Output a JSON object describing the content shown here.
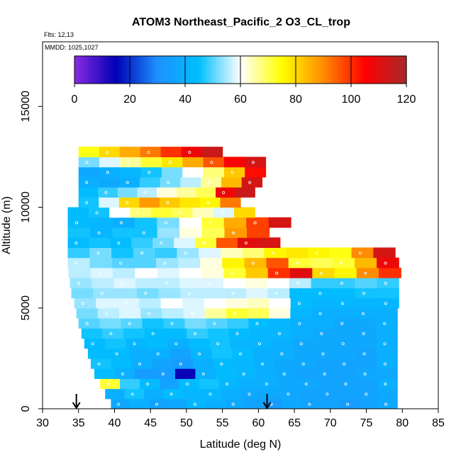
{
  "chart_data": {
    "type": "heatmap",
    "title": "ATOM3 Northeast_Pacific_2 O3_CL_trop",
    "flights_label": "Flts: 12,13",
    "dates_label": "MMDD: 1025,1027",
    "xlabel": "Latitude (deg N)",
    "ylabel": "Altitude (m)",
    "xlim": [
      30,
      85
    ],
    "ylim": [
      0,
      17500
    ],
    "xticks": [
      "30",
      "35",
      "40",
      "45",
      "50",
      "55",
      "60",
      "65",
      "70",
      "75",
      "80",
      "85"
    ],
    "yticks": [
      "0",
      "5000",
      "10000",
      "15000"
    ],
    "colorbar": {
      "min": 0,
      "max": 120,
      "ticks": [
        "0",
        "20",
        "40",
        "60",
        "80",
        "100",
        "120"
      ],
      "colors": [
        "#8a2be2",
        "#0000b4",
        "#1e90ff",
        "#00bfff",
        "#ffffff",
        "#ffff00",
        "#ff8c00",
        "#ff0000",
        "#a52a2a"
      ]
    },
    "arrows_latitude": [
      34.7,
      61.2
    ],
    "layer_height_m": 500,
    "layers": [
      {
        "alt": 0,
        "lat_start": 39.5,
        "lat_end": 79.3,
        "values": [
          38,
          40,
          36,
          38,
          42,
          40,
          38,
          36,
          34,
          38,
          36,
          36,
          34,
          36,
          38
        ]
      },
      {
        "alt": 500,
        "lat_start": 38.7,
        "lat_end": 79.3,
        "values": [
          40,
          46,
          40,
          44,
          42,
          42,
          40,
          38,
          38,
          38,
          36,
          36,
          36,
          36,
          38
        ]
      },
      {
        "alt": 1000,
        "lat_start": 38.0,
        "lat_end": 79.3,
        "values": [
          72,
          48,
          44,
          36,
          44,
          46,
          42,
          40,
          40,
          38,
          38,
          36,
          36,
          36,
          40
        ]
      },
      {
        "alt": 1500,
        "lat_start": 37.2,
        "lat_end": 79.3,
        "values": [
          44,
          40,
          34,
          34,
          14,
          40,
          44,
          42,
          40,
          38,
          36,
          36,
          36,
          38,
          38
        ]
      },
      {
        "alt": 2000,
        "lat_start": 36.7,
        "lat_end": 79.3,
        "values": [
          46,
          44,
          40,
          36,
          34,
          40,
          44,
          42,
          40,
          38,
          38,
          36,
          36,
          36,
          40
        ]
      },
      {
        "alt": 2500,
        "lat_start": 36.3,
        "lat_end": 79.3,
        "values": [
          44,
          44,
          40,
          40,
          36,
          42,
          46,
          44,
          40,
          40,
          38,
          38,
          38,
          36,
          40
        ]
      },
      {
        "alt": 3000,
        "lat_start": 35.8,
        "lat_end": 79.3,
        "values": [
          44,
          46,
          42,
          44,
          40,
          44,
          46,
          42,
          42,
          40,
          38,
          38,
          38,
          38,
          40
        ]
      },
      {
        "alt": 3500,
        "lat_start": 35.4,
        "lat_end": 79.3,
        "values": [
          46,
          48,
          46,
          44,
          44,
          48,
          46,
          44,
          42,
          42,
          40,
          38,
          38,
          38,
          40
        ]
      },
      {
        "alt": 4000,
        "lat_start": 35.0,
        "lat_end": 79.3,
        "values": [
          50,
          52,
          50,
          46,
          48,
          52,
          50,
          48,
          44,
          42,
          40,
          40,
          38,
          38,
          40
        ]
      },
      {
        "alt": 4500,
        "lat_start": 34.7,
        "lat_end": 79.3,
        "values": [
          52,
          56,
          58,
          54,
          56,
          58,
          66,
          72,
          70,
          62,
          42,
          40,
          40,
          40,
          40
        ]
      },
      {
        "alt": 5000,
        "lat_start": 34.4,
        "lat_end": 79.5,
        "values": [
          54,
          58,
          58,
          56,
          60,
          58,
          60,
          62,
          64,
          60,
          44,
          42,
          42,
          42,
          42
        ]
      },
      {
        "alt": 5500,
        "lat_start": 34.0,
        "lat_end": 79.5,
        "values": [
          52,
          54,
          54,
          52,
          54,
          56,
          56,
          56,
          58,
          56,
          44,
          44,
          44,
          46,
          46
        ]
      },
      {
        "alt": 6000,
        "lat_start": 33.8,
        "lat_end": 79.5,
        "values": [
          54,
          56,
          58,
          56,
          56,
          58,
          58,
          60,
          62,
          60,
          56,
          48,
          48,
          50,
          48
        ]
      },
      {
        "alt": 6500,
        "lat_start": 33.6,
        "lat_end": 79.8,
        "values": [
          56,
          58,
          56,
          60,
          58,
          60,
          62,
          72,
          82,
          100,
          110,
          80,
          76,
          90,
          100
        ]
      },
      {
        "alt": 7000,
        "lat_start": 33.5,
        "lat_end": 79.5,
        "values": [
          56,
          52,
          50,
          50,
          54,
          56,
          62,
          76,
          84,
          96,
          72,
          70,
          72,
          84,
          108
        ]
      },
      {
        "alt": 7500,
        "lat_start": 33.5,
        "lat_end": 79.0,
        "values": [
          48,
          52,
          46,
          50,
          48,
          54,
          58,
          64,
          68,
          76,
          78,
          76,
          74,
          90,
          112
        ]
      },
      {
        "alt": 8000,
        "lat_start": 33.5,
        "lat_end": 63.0,
        "values": [
          44,
          46,
          44,
          48,
          52,
          58,
          72,
          96,
          110,
          112
        ]
      },
      {
        "alt": 8500,
        "lat_start": 33.5,
        "lat_end": 61.5,
        "values": [
          46,
          42,
          46,
          46,
          54,
          62,
          70,
          88,
          98
        ]
      },
      {
        "alt": 9000,
        "lat_start": 33.5,
        "lat_end": 64.5,
        "values": [
          44,
          42,
          40,
          46,
          52,
          60,
          72,
          86,
          98,
          112
        ]
      },
      {
        "alt": 9500,
        "lat_start": 33.5,
        "lat_end": 59.5,
        "values": [
          44,
          46,
          60,
          68,
          72,
          70,
          64,
          58,
          80
        ]
      },
      {
        "alt": 10000,
        "lat_start": 35.0,
        "lat_end": 57.5,
        "values": [
          46,
          58,
          80,
          88,
          82,
          78,
          76,
          92
        ]
      },
      {
        "alt": 10500,
        "lat_start": 35.0,
        "lat_end": 59.5,
        "values": [
          44,
          48,
          52,
          56,
          62,
          66,
          70,
          108,
          114
        ]
      },
      {
        "alt": 11000,
        "lat_start": 35.0,
        "lat_end": 60.5,
        "values": [
          40,
          38,
          40,
          48,
          52,
          56,
          66,
          84,
          112
        ]
      },
      {
        "alt": 11500,
        "lat_start": 35.0,
        "lat_end": 61.0,
        "values": [
          38,
          40,
          42,
          46,
          52,
          60,
          68,
          82,
          104
        ]
      },
      {
        "alt": 12000,
        "lat_start": 35.0,
        "lat_end": 61.0,
        "values": [
          52,
          58,
          66,
          72,
          78,
          86,
          96,
          106,
          112
        ]
      },
      {
        "alt": 12500,
        "lat_start": 35.0,
        "lat_end": 55.0,
        "values": [
          74,
          80,
          86,
          92,
          100,
          108,
          114
        ]
      }
    ]
  }
}
